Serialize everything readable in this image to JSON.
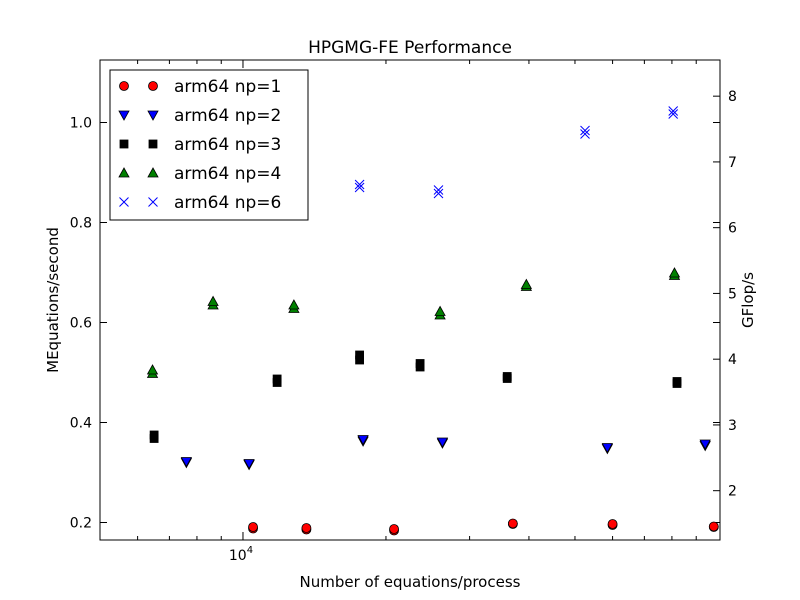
{
  "chart_data": {
    "type": "scatter",
    "title": "HPGMG-FE Performance",
    "xlabel": "Number of equations/process",
    "ylabel": "MEquations/second",
    "y2label": "GFlop/s",
    "xscale": "log",
    "xlim": [
      5000,
      101000
    ],
    "ylim": [
      0.165,
      1.125
    ],
    "y2lim": [
      1.25,
      8.55
    ],
    "grid": false,
    "legend_position": "top-left",
    "x_tick_labels": [
      {
        "value": 10000,
        "base": "10",
        "exp": "4"
      }
    ],
    "y_ticks": [
      {
        "value": 0.2,
        "label": "0.2"
      },
      {
        "value": 0.4,
        "label": "0.4"
      },
      {
        "value": 0.6,
        "label": "0.6"
      },
      {
        "value": 0.8,
        "label": "0.8"
      },
      {
        "value": 1.0,
        "label": "1.0"
      }
    ],
    "y2_ticks": [
      {
        "value": 2,
        "label": "2"
      },
      {
        "value": 3,
        "label": "3"
      },
      {
        "value": 4,
        "label": "4"
      },
      {
        "value": 5,
        "label": "5"
      },
      {
        "value": 6,
        "label": "6"
      },
      {
        "value": 7,
        "label": "7"
      },
      {
        "value": 8,
        "label": "8"
      }
    ],
    "series": [
      {
        "name": "arm64 np=1",
        "marker": "circle",
        "color": "#ff0000",
        "points": [
          {
            "x": 10500,
            "y": 0.188
          },
          {
            "x": 10500,
            "y": 0.191
          },
          {
            "x": 13600,
            "y": 0.186
          },
          {
            "x": 13600,
            "y": 0.189
          },
          {
            "x": 20800,
            "y": 0.184
          },
          {
            "x": 20800,
            "y": 0.187
          },
          {
            "x": 37000,
            "y": 0.197
          },
          {
            "x": 37000,
            "y": 0.198
          },
          {
            "x": 60000,
            "y": 0.195
          },
          {
            "x": 60000,
            "y": 0.197
          },
          {
            "x": 98000,
            "y": 0.191
          },
          {
            "x": 98000,
            "y": 0.192
          }
        ]
      },
      {
        "name": "arm64 np=2",
        "marker": "triangle-down",
        "color": "#0000ff",
        "points": [
          {
            "x": 7600,
            "y": 0.32
          },
          {
            "x": 7600,
            "y": 0.322
          },
          {
            "x": 10300,
            "y": 0.316
          },
          {
            "x": 10300,
            "y": 0.318
          },
          {
            "x": 17900,
            "y": 0.363
          },
          {
            "x": 17900,
            "y": 0.366
          },
          {
            "x": 26300,
            "y": 0.359
          },
          {
            "x": 26300,
            "y": 0.361
          },
          {
            "x": 58500,
            "y": 0.348
          },
          {
            "x": 58500,
            "y": 0.35
          },
          {
            "x": 94000,
            "y": 0.354
          },
          {
            "x": 94000,
            "y": 0.357
          }
        ]
      },
      {
        "name": "arm64 np=3",
        "marker": "square",
        "color": "#000000",
        "points": [
          {
            "x": 6500,
            "y": 0.368
          },
          {
            "x": 6500,
            "y": 0.375
          },
          {
            "x": 11800,
            "y": 0.48
          },
          {
            "x": 11800,
            "y": 0.487
          },
          {
            "x": 17600,
            "y": 0.525
          },
          {
            "x": 17600,
            "y": 0.535
          },
          {
            "x": 23600,
            "y": 0.511
          },
          {
            "x": 23600,
            "y": 0.518
          },
          {
            "x": 36000,
            "y": 0.488
          },
          {
            "x": 36000,
            "y": 0.492
          },
          {
            "x": 82000,
            "y": 0.478
          },
          {
            "x": 82000,
            "y": 0.482
          }
        ]
      },
      {
        "name": "arm64 np=4",
        "marker": "triangle-up",
        "color": "#008000",
        "points": [
          {
            "x": 6450,
            "y": 0.498
          },
          {
            "x": 6450,
            "y": 0.505
          },
          {
            "x": 8650,
            "y": 0.635
          },
          {
            "x": 8650,
            "y": 0.642
          },
          {
            "x": 12800,
            "y": 0.628
          },
          {
            "x": 12800,
            "y": 0.635
          },
          {
            "x": 26000,
            "y": 0.615
          },
          {
            "x": 26000,
            "y": 0.622
          },
          {
            "x": 39500,
            "y": 0.672
          },
          {
            "x": 39500,
            "y": 0.676
          },
          {
            "x": 81000,
            "y": 0.694
          },
          {
            "x": 81000,
            "y": 0.699
          }
        ]
      },
      {
        "name": "arm64 np=6",
        "marker": "x",
        "color": "#0000ff",
        "points": [
          {
            "x": 17600,
            "y": 0.87
          },
          {
            "x": 17600,
            "y": 0.876
          },
          {
            "x": 25800,
            "y": 0.858
          },
          {
            "x": 25800,
            "y": 0.865
          },
          {
            "x": 52500,
            "y": 0.977
          },
          {
            "x": 52500,
            "y": 0.984
          },
          {
            "x": 80500,
            "y": 1.017
          },
          {
            "x": 80500,
            "y": 1.023
          }
        ]
      }
    ]
  }
}
